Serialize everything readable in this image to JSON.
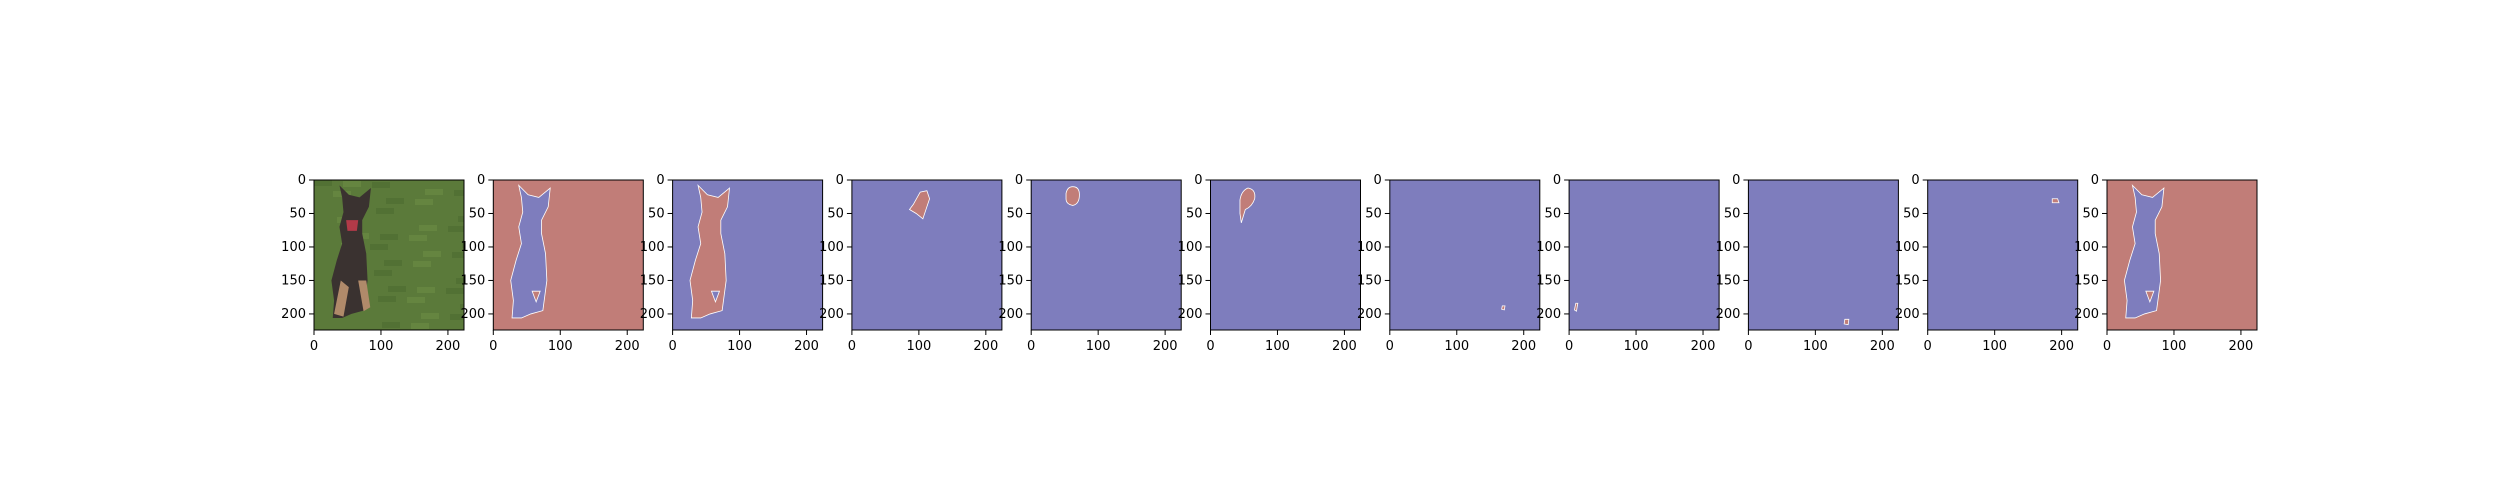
{
  "colors": {
    "background_class": "#c17d78",
    "foreground_class": "#7e7dbd",
    "grass": "#5b7a3a",
    "dog_dark": "#3a3230",
    "dog_tan": "#b08a6a"
  },
  "chart_data": {
    "type": "heatmap",
    "description_panels": 11,
    "x_ticks": [
      "0",
      "100",
      "200"
    ],
    "y_ticks": [
      "0",
      "50",
      "100",
      "150",
      "200"
    ],
    "x_tick_values": [
      0,
      100,
      200
    ],
    "y_tick_values": [
      0,
      50,
      100,
      150,
      200
    ],
    "xlim": [
      0,
      224
    ],
    "ylim": [
      224,
      0
    ],
    "panels": [
      {
        "kind": "photo",
        "content": "dog running on grass"
      },
      {
        "kind": "mask",
        "mask": "dog-body",
        "mask_color": "foreground",
        "bg_color": "background"
      },
      {
        "kind": "mask",
        "mask": "dog-body",
        "mask_color": "background",
        "bg_color": "foreground"
      },
      {
        "kind": "mask",
        "mask": "right-ear",
        "mask_color": "background",
        "bg_color": "foreground"
      },
      {
        "kind": "mask",
        "mask": "head-spot",
        "mask_color": "background",
        "bg_color": "foreground"
      },
      {
        "kind": "mask",
        "mask": "left-ear",
        "mask_color": "background",
        "bg_color": "foreground"
      },
      {
        "kind": "mask",
        "mask": "tiny-right",
        "mask_color": "background",
        "bg_color": "foreground"
      },
      {
        "kind": "mask",
        "mask": "tiny-left",
        "mask_color": "background",
        "bg_color": "foreground"
      },
      {
        "kind": "mask",
        "mask": "tiny-bottom",
        "mask_color": "background",
        "bg_color": "foreground"
      },
      {
        "kind": "mask",
        "mask": "tiny-top-right",
        "mask_color": "background",
        "bg_color": "foreground"
      },
      {
        "kind": "mask",
        "mask": "dog-body",
        "mask_color": "foreground",
        "bg_color": "background"
      }
    ]
  }
}
